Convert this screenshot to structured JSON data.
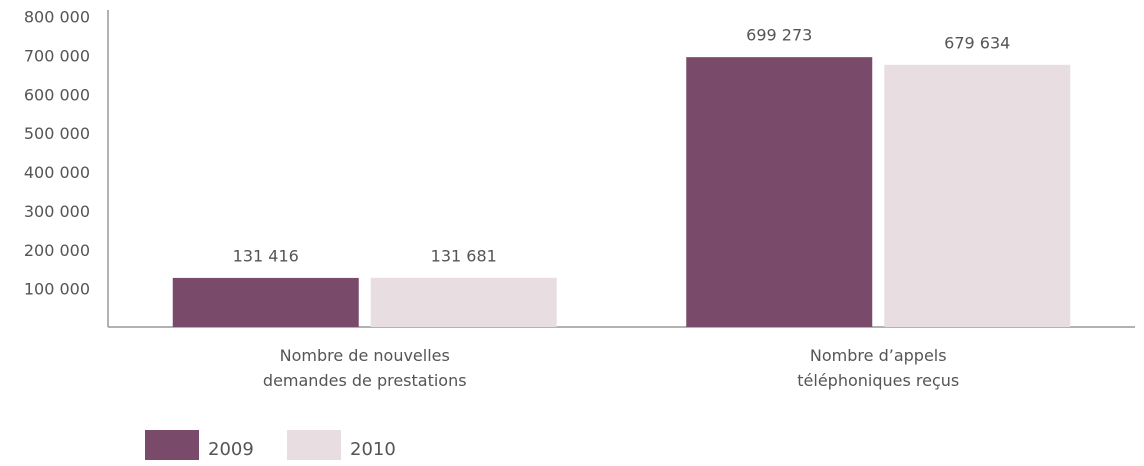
{
  "chart_data": {
    "type": "bar",
    "categories": [
      "Nombre de nouvelles\ndemandes de prestations",
      "Nombre d’appels\ntéléphoniques reçus"
    ],
    "series": [
      {
        "name": "2009",
        "color": "#7a4a6a",
        "values": [
          131416,
          699273
        ],
        "value_labels": [
          "131 416",
          "699 273"
        ]
      },
      {
        "name": "2010",
        "color": "#e8dde1",
        "values": [
          131681,
          679634
        ],
        "value_labels": [
          "131 681",
          "679 634"
        ]
      }
    ],
    "ylim": [
      0,
      800000
    ],
    "yticks": [
      {
        "value": 100000,
        "label": "100 000"
      },
      {
        "value": 200000,
        "label": "200 000"
      },
      {
        "value": 300000,
        "label": "300 000"
      },
      {
        "value": 400000,
        "label": "400 000"
      },
      {
        "value": 500000,
        "label": "500 000"
      },
      {
        "value": 600000,
        "label": "600 000"
      },
      {
        "value": 700000,
        "label": "700 000"
      },
      {
        "value": 800000,
        "label": "800 000"
      }
    ],
    "grid": false,
    "legend": "bottom-left"
  }
}
